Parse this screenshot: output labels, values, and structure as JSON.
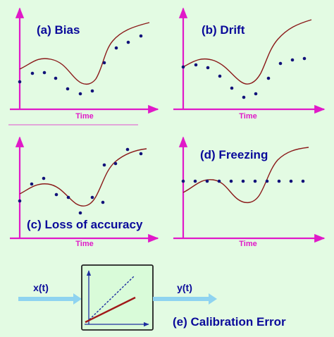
{
  "colors": {
    "background": "#e3fbe3",
    "axis": "#e019c8",
    "curve": "#8b1a1a",
    "dots": "#12127a",
    "title": "#0a0a9a",
    "arrow": "#8fd3f0",
    "box_fill": "#d9fbd9",
    "box_border": "#222222",
    "ideal_line": "#1f2fa0",
    "actual_line": "#a01818"
  },
  "panels": [
    {
      "title": "(a) Bias",
      "xlabel": "Time",
      "fault": "bias"
    },
    {
      "title": "(b) Drift",
      "xlabel": "Time",
      "fault": "drift"
    },
    {
      "title": "(c) Loss of accuracy",
      "xlabel": "Time",
      "fault": "loss-of-accuracy"
    },
    {
      "title": "(d) Freezing",
      "xlabel": "Time",
      "fault": "freezing"
    }
  ],
  "calibration": {
    "title": "(e) Calibration Error",
    "input_label": "x(t)",
    "output_label": "y(t)",
    "ideal_line_style": "dashed",
    "actual_line_style": "solid"
  }
}
